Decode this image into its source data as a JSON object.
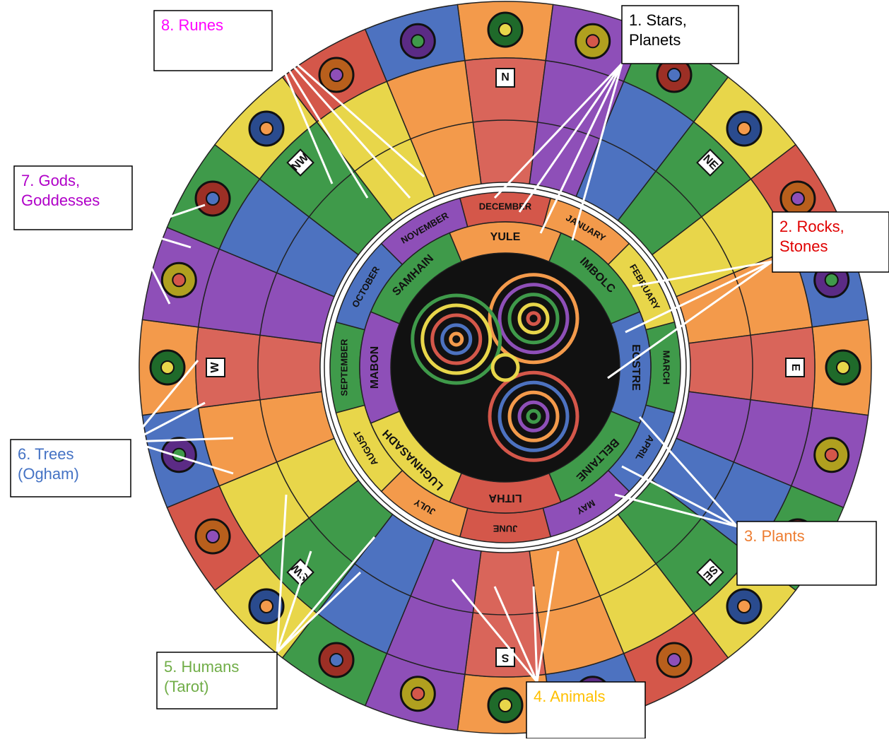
{
  "callouts": [
    {
      "lines": [
        "1. Stars,",
        "Planets"
      ]
    },
    {
      "lines": [
        "2. Rocks,",
        "Stones"
      ]
    },
    {
      "lines": [
        "3. Plants"
      ]
    },
    {
      "lines": [
        "4. Animals"
      ]
    },
    {
      "lines": [
        "5. Humans",
        "(Tarot)"
      ]
    },
    {
      "lines": [
        "6. Trees",
        "(Ogham)"
      ]
    },
    {
      "lines": [
        "7. Gods,",
        "Goddesses"
      ]
    },
    {
      "lines": [
        "8. Runes"
      ]
    }
  ],
  "wheel": {
    "directions": [
      "N",
      "NE",
      "E",
      "SE",
      "S",
      "SW",
      "W",
      "NW"
    ],
    "months": [
      "DECEMBER",
      "JANUARY",
      "FEBRUARY",
      "MARCH",
      "APRIL",
      "MAY",
      "JUNE",
      "JULY",
      "AUGUST",
      "SEPTEMBER",
      "OCTOBER",
      "NOVEMBER"
    ],
    "festivals": [
      "YULE",
      "IMBOLC",
      "EOSTRE",
      "BELTAINE",
      "LITHA",
      "LUGHNASADH",
      "MABON",
      "SAMHAIN"
    ]
  }
}
